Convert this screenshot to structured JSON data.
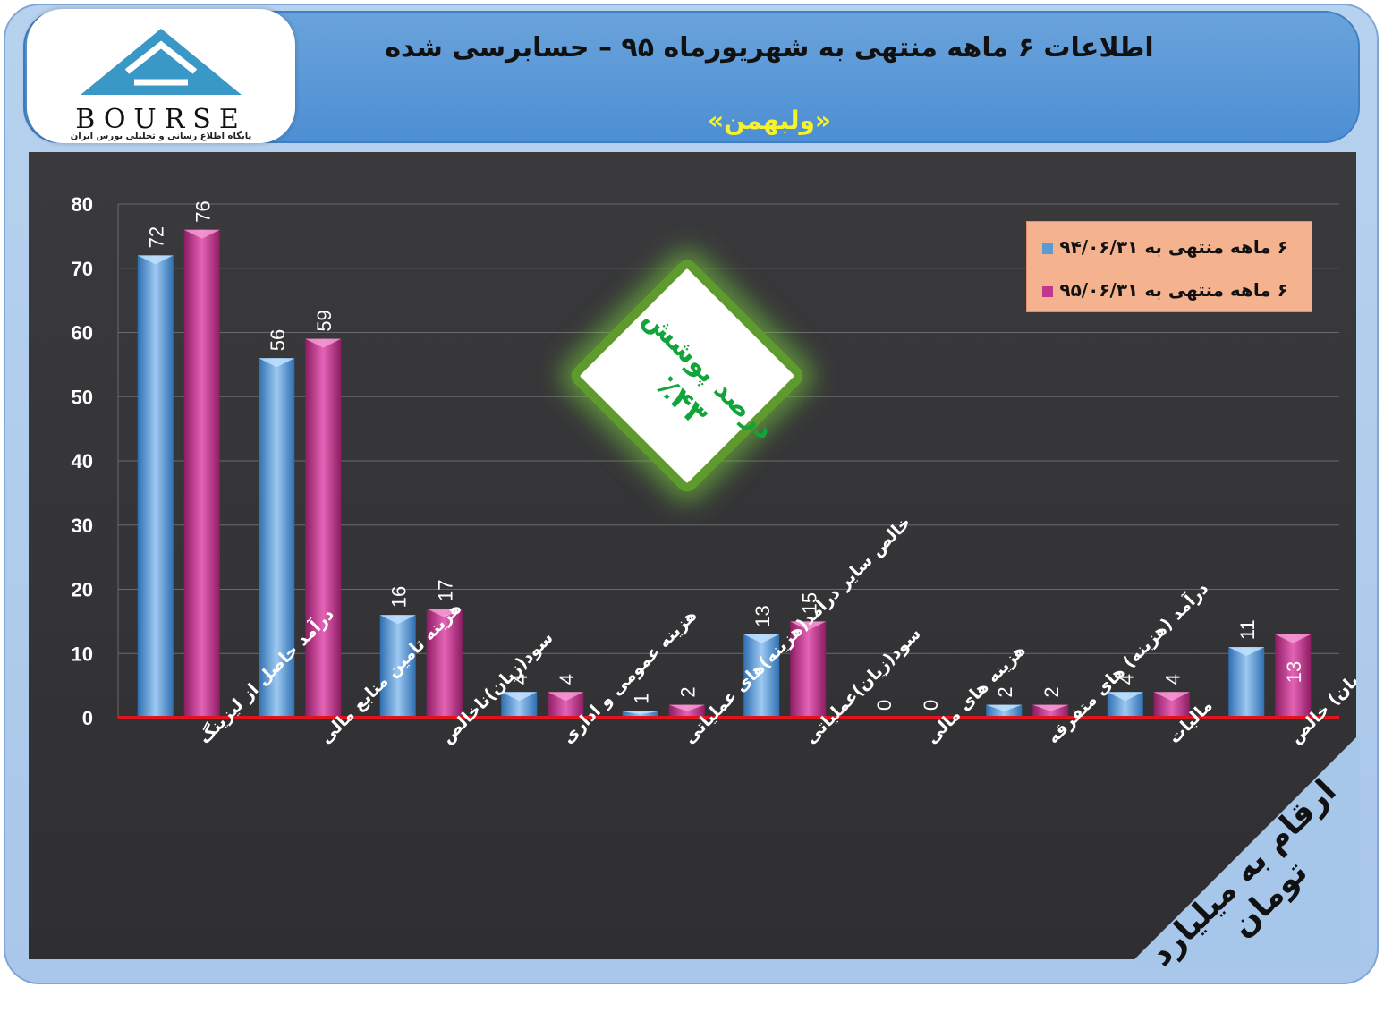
{
  "header": {
    "title": "اطلاعات ۶  ماهه منتهی به شهریورماه ۹۵ – حسابرسی شده",
    "subtitle": "«ولبهمن»"
  },
  "logo": {
    "text": "BOURSE",
    "tagline": "پایگاه اطلاع رسانی و تحلیلی بورس ایران",
    "primary_color": "#3a98c7"
  },
  "note": {
    "line1": "درصد پوشش",
    "line2": "٪۴۳"
  },
  "corner_label": "ارقام به میلیارد تومان",
  "colors": {
    "series1": "#5b9bd5",
    "series2": "#c2378e",
    "baseline": "#e0141c"
  },
  "chart_data": {
    "type": "bar",
    "categories": [
      "درآمد حاصل از لیزینگ",
      "هزینه تامین منابع مالی",
      "سود(زیان)ناخالص",
      "هزینه عمومی و اداری",
      "خالص سایر درامد(هزینه)های عملیاتی",
      "سود(زیان)عملیاتی",
      "هزینه های مالی",
      "درآمد (هزینه) های متفرقه",
      "مالیات",
      "سود(زیان) خالص"
    ],
    "series": [
      {
        "name": "۶ ماهه منتهی به ۹۴/۰۶/۳۱",
        "values": [
          72,
          56,
          16,
          4,
          1,
          13,
          0,
          2,
          4,
          11
        ]
      },
      {
        "name": "۶ ماهه منتهی به ۹۵/۰۶/۳۱",
        "values": [
          76,
          59,
          17,
          4,
          2,
          15,
          0,
          2,
          4,
          13
        ]
      }
    ],
    "yticks": [
      "0",
      "10",
      "20",
      "30",
      "40",
      "50",
      "60",
      "70",
      "80"
    ],
    "ylim": [
      0,
      80
    ],
    "grid": true,
    "legend": "top-right"
  }
}
